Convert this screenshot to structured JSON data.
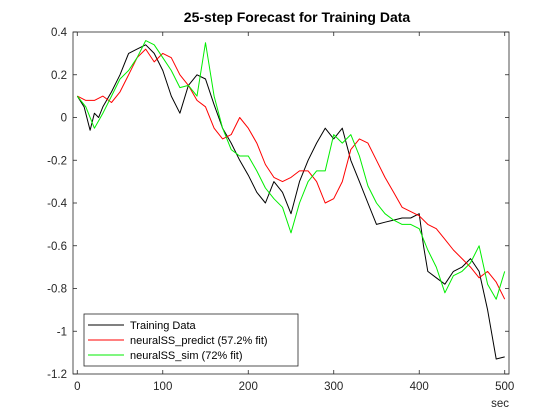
{
  "chart_data": {
    "type": "line",
    "title": "25-step Forecast for Training Data",
    "xlabel": "sec",
    "ylabel": "",
    "xlim": [
      -5,
      505
    ],
    "ylim": [
      -1.2,
      0.4
    ],
    "x_ticks": [
      0,
      100,
      200,
      300,
      400,
      500
    ],
    "y_ticks": [
      -1.2,
      -1,
      -0.8,
      -0.6,
      -0.4,
      -0.2,
      0,
      0.2,
      0.4
    ],
    "y_tick_labels": [
      "-1.2",
      "-1",
      "-0.8",
      "-0.6",
      "-0.4",
      "-0.2",
      "0",
      "0.2",
      "0.4"
    ],
    "grid": false,
    "legend_position": "bottom-left",
    "series": [
      {
        "name": "Training Data",
        "color": "#000000",
        "x": [
          0,
          8,
          15,
          20,
          25,
          30,
          40,
          50,
          60,
          70,
          80,
          90,
          100,
          110,
          120,
          130,
          140,
          150,
          160,
          170,
          180,
          190,
          200,
          210,
          220,
          230,
          240,
          250,
          260,
          270,
          280,
          290,
          300,
          310,
          320,
          330,
          340,
          350,
          360,
          370,
          380,
          390,
          400,
          405,
          410,
          420,
          430,
          440,
          450,
          460,
          470,
          480,
          490,
          500
        ],
        "y": [
          0.1,
          0.05,
          -0.06,
          0.02,
          0.0,
          0.05,
          0.12,
          0.2,
          0.3,
          0.32,
          0.34,
          0.3,
          0.22,
          0.1,
          0.02,
          0.15,
          0.2,
          0.18,
          0.06,
          -0.05,
          -0.12,
          -0.2,
          -0.27,
          -0.35,
          -0.4,
          -0.3,
          -0.35,
          -0.45,
          -0.3,
          -0.2,
          -0.12,
          -0.05,
          -0.1,
          -0.05,
          -0.2,
          -0.3,
          -0.4,
          -0.5,
          -0.49,
          -0.48,
          -0.47,
          -0.47,
          -0.45,
          -0.6,
          -0.72,
          -0.75,
          -0.78,
          -0.72,
          -0.7,
          -0.66,
          -0.72,
          -0.9,
          -1.13,
          -1.12
        ]
      },
      {
        "name": "neuralSS_predict  (57.2%  fit)",
        "color": "#ff0000",
        "x": [
          0,
          10,
          20,
          30,
          40,
          50,
          60,
          70,
          80,
          90,
          100,
          110,
          120,
          130,
          140,
          150,
          160,
          170,
          180,
          190,
          200,
          210,
          220,
          230,
          240,
          250,
          260,
          270,
          280,
          290,
          300,
          310,
          320,
          330,
          340,
          350,
          360,
          370,
          380,
          390,
          400,
          410,
          420,
          430,
          440,
          450,
          460,
          470,
          480,
          490,
          500
        ],
        "y": [
          0.1,
          0.08,
          0.08,
          0.1,
          0.07,
          0.12,
          0.2,
          0.28,
          0.32,
          0.26,
          0.3,
          0.28,
          0.2,
          0.15,
          0.08,
          0.05,
          -0.05,
          -0.1,
          -0.08,
          0.0,
          -0.05,
          -0.12,
          -0.22,
          -0.28,
          -0.3,
          -0.28,
          -0.25,
          -0.25,
          -0.3,
          -0.4,
          -0.38,
          -0.3,
          -0.15,
          -0.1,
          -0.12,
          -0.2,
          -0.28,
          -0.35,
          -0.42,
          -0.44,
          -0.46,
          -0.5,
          -0.52,
          -0.57,
          -0.62,
          -0.66,
          -0.7,
          -0.75,
          -0.72,
          -0.77,
          -0.85
        ]
      },
      {
        "name": "neuralSS_sim  (72%  fit)",
        "color": "#00ee00",
        "x": [
          0,
          10,
          20,
          30,
          40,
          50,
          60,
          70,
          80,
          90,
          100,
          110,
          120,
          130,
          140,
          150,
          160,
          170,
          180,
          190,
          200,
          210,
          220,
          230,
          240,
          250,
          260,
          270,
          280,
          290,
          300,
          310,
          320,
          330,
          340,
          350,
          360,
          370,
          380,
          390,
          400,
          410,
          420,
          430,
          440,
          450,
          460,
          470,
          480,
          490,
          500
        ],
        "y": [
          0.1,
          0.05,
          -0.05,
          0.02,
          0.1,
          0.18,
          0.22,
          0.28,
          0.36,
          0.34,
          0.28,
          0.22,
          0.14,
          0.15,
          0.1,
          0.35,
          0.1,
          -0.05,
          -0.15,
          -0.18,
          -0.18,
          -0.25,
          -0.33,
          -0.38,
          -0.42,
          -0.54,
          -0.4,
          -0.3,
          -0.25,
          -0.25,
          -0.08,
          -0.12,
          -0.08,
          -0.18,
          -0.32,
          -0.4,
          -0.45,
          -0.48,
          -0.5,
          -0.5,
          -0.52,
          -0.62,
          -0.7,
          -0.82,
          -0.74,
          -0.72,
          -0.68,
          -0.6,
          -0.78,
          -0.85,
          -0.72
        ]
      }
    ]
  }
}
